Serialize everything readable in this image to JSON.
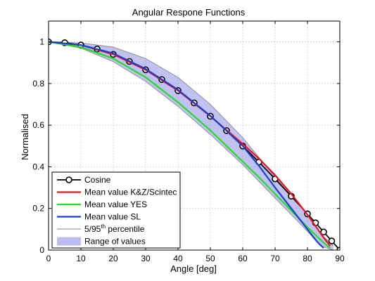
{
  "chart_data": {
    "type": "line",
    "title": "Angular Respone Functions",
    "xlabel": "Angle [deg]",
    "ylabel": "Normalised",
    "xlim": [
      0,
      90
    ],
    "ylim": [
      0,
      1.1
    ],
    "xticks": [
      0,
      10,
      20,
      30,
      40,
      50,
      60,
      70,
      80,
      90
    ],
    "yticks": [
      0,
      0.2,
      0.4,
      0.6,
      0.8,
      1
    ],
    "ytick_labels": [
      "0",
      "0.2",
      "0.4",
      "0.6",
      "0.8",
      "1"
    ],
    "grid": true,
    "legend_position": "bottom-left",
    "series": [
      {
        "name": "Cosine",
        "color": "#000000",
        "marker": "circle",
        "x": [
          0,
          5,
          10,
          15,
          20,
          25,
          30,
          35,
          40,
          45,
          50,
          55,
          60,
          65,
          70,
          75,
          80,
          82.5,
          85,
          87.5,
          90
        ],
        "y": [
          1.0,
          0.996,
          0.985,
          0.966,
          0.94,
          0.906,
          0.866,
          0.819,
          0.766,
          0.707,
          0.643,
          0.574,
          0.5,
          0.423,
          0.342,
          0.259,
          0.174,
          0.131,
          0.087,
          0.044,
          0.0
        ]
      },
      {
        "name": "Mean value K&Z/Scintec",
        "color": "#e8141e",
        "x": [
          0,
          10,
          20,
          30,
          40,
          50,
          60,
          65,
          70,
          75,
          80,
          85,
          87
        ],
        "y": [
          1.0,
          0.985,
          0.94,
          0.866,
          0.766,
          0.643,
          0.51,
          0.44,
          0.36,
          0.27,
          0.17,
          0.06,
          0.02
        ]
      },
      {
        "name": "Mean value YES",
        "color": "#22dd22",
        "x": [
          0,
          10,
          20,
          30,
          40,
          50,
          60,
          65,
          70,
          75,
          80,
          85,
          87
        ],
        "y": [
          1.0,
          0.975,
          0.92,
          0.83,
          0.71,
          0.575,
          0.425,
          0.35,
          0.27,
          0.19,
          0.11,
          0.035,
          0.01
        ]
      },
      {
        "name": "Mean value SL",
        "color": "#1a3fcc",
        "x": [
          0,
          10,
          20,
          30,
          40,
          50,
          60,
          65,
          70,
          75,
          80,
          83,
          85
        ],
        "y": [
          1.0,
          0.985,
          0.945,
          0.87,
          0.77,
          0.645,
          0.5,
          0.405,
          0.3,
          0.2,
          0.1,
          0.04,
          0.01
        ]
      }
    ],
    "percentile_label_main": "5/95",
    "percentile_label_sup": "th",
    "percentile_label_tail": " percentile",
    "percentile_color": "#808080",
    "range_label": "Range of values",
    "range_color": "#8f8fe8",
    "range_x": [
      0,
      10,
      20,
      30,
      40,
      50,
      60,
      65,
      70,
      75,
      80,
      84,
      88
    ],
    "range_upper": [
      1.0,
      0.995,
      0.975,
      0.92,
      0.83,
      0.7,
      0.54,
      0.445,
      0.35,
      0.26,
      0.17,
      0.08,
      0.02
    ],
    "range_lower": [
      1.0,
      0.97,
      0.905,
      0.81,
      0.69,
      0.555,
      0.41,
      0.33,
      0.25,
      0.17,
      0.09,
      0.02,
      0.0
    ]
  }
}
